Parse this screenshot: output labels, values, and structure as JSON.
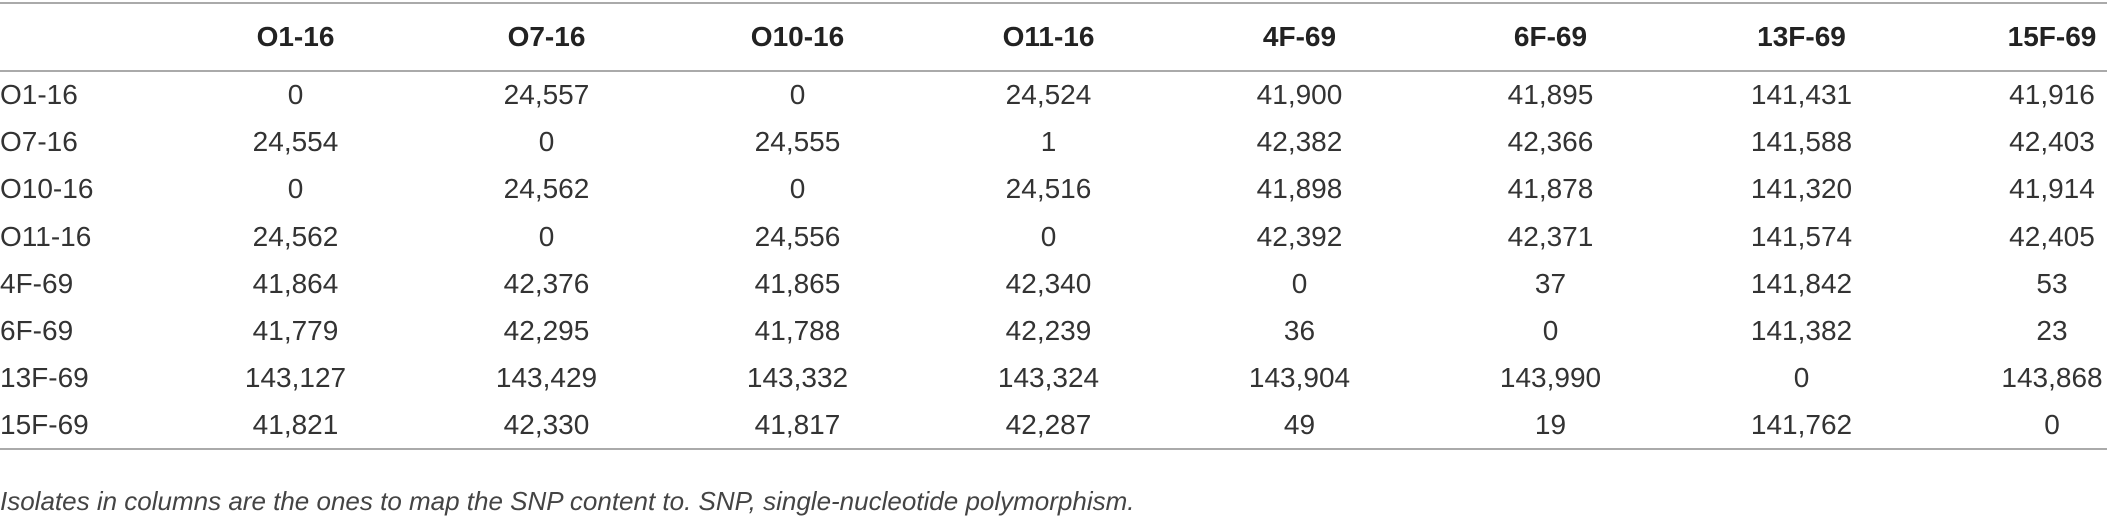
{
  "table": {
    "columns": [
      "",
      "O1-16",
      "O7-16",
      "O10-16",
      "O11-16",
      "4F-69",
      "6F-69",
      "13F-69",
      "15F-69"
    ],
    "rows": [
      [
        "O1-16",
        "0",
        "24,557",
        "0",
        "24,524",
        "41,900",
        "41,895",
        "141,431",
        "41,916"
      ],
      [
        "O7-16",
        "24,554",
        "0",
        "24,555",
        "1",
        "42,382",
        "42,366",
        "141,588",
        "42,403"
      ],
      [
        "O10-16",
        "0",
        "24,562",
        "0",
        "24,516",
        "41,898",
        "41,878",
        "141,320",
        "41,914"
      ],
      [
        "O11-16",
        "24,562",
        "0",
        "24,556",
        "0",
        "42,392",
        "42,371",
        "141,574",
        "42,405"
      ],
      [
        "4F-69",
        "41,864",
        "42,376",
        "41,865",
        "42,340",
        "0",
        "37",
        "141,842",
        "53"
      ],
      [
        "6F-69",
        "41,779",
        "42,295",
        "41,788",
        "42,239",
        "36",
        "0",
        "141,382",
        "23"
      ],
      [
        "13F-69",
        "143,127",
        "143,429",
        "143,332",
        "143,324",
        "143,904",
        "143,990",
        "0",
        "143,868"
      ],
      [
        "15F-69",
        "41,821",
        "42,330",
        "41,817",
        "42,287",
        "49",
        "19",
        "141,762",
        "0"
      ]
    ],
    "footnote": "Isolates in columns are the ones to map the SNP content to. SNP, single-nucleotide polymorphism."
  }
}
